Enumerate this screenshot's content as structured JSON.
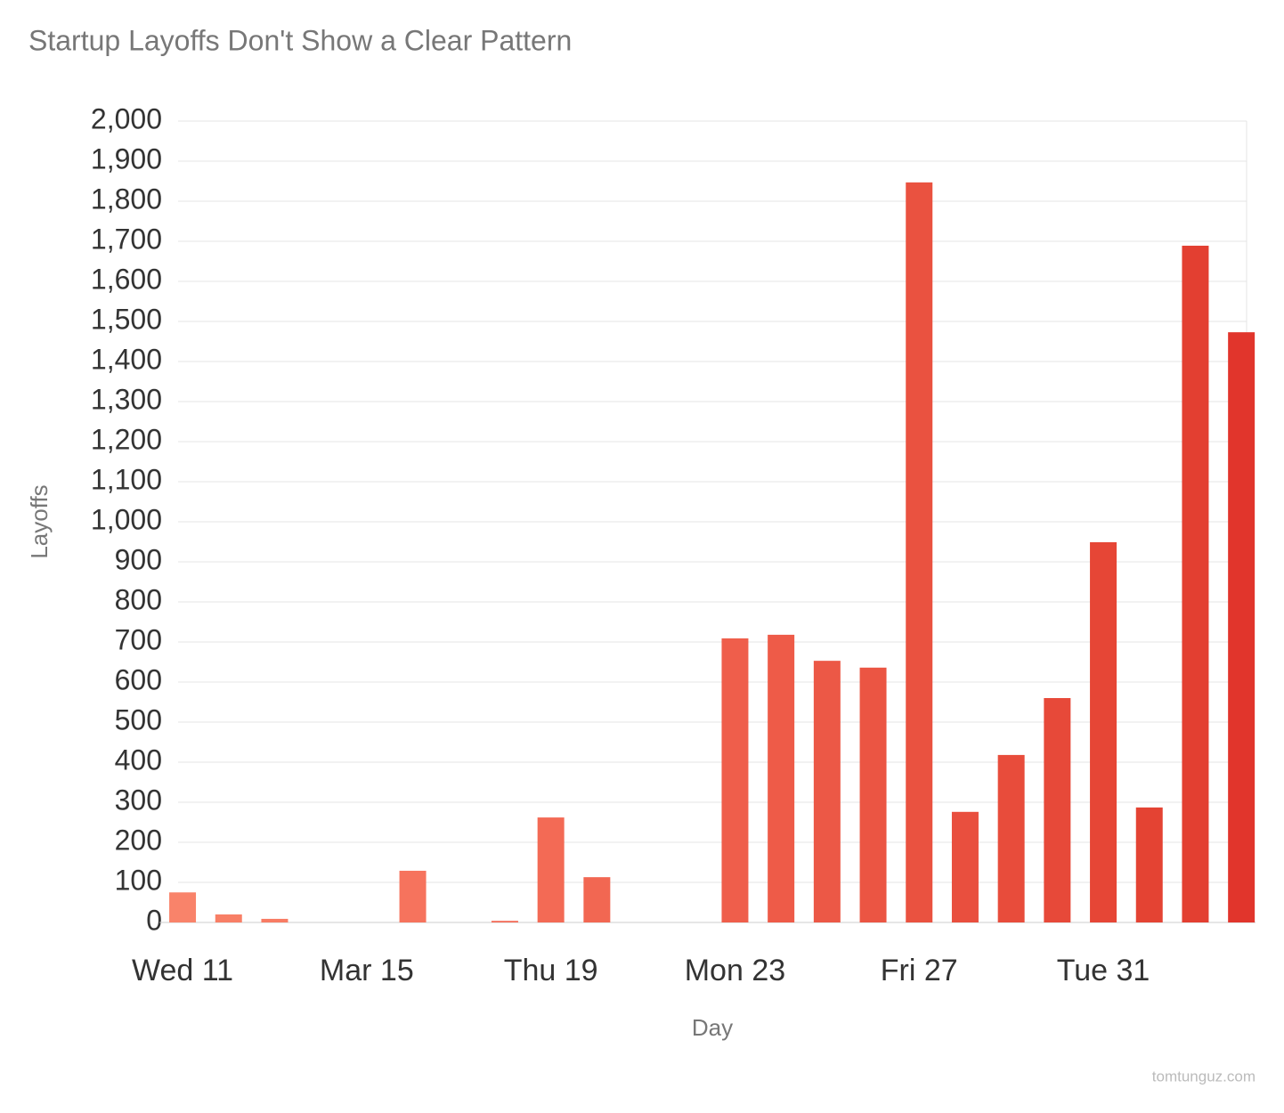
{
  "chart_data": {
    "type": "bar",
    "title": "Startup Layoffs Don't Show a Clear Pattern",
    "x_label": "Day",
    "y_label": "Layoffs",
    "source": "tomtunguz.com",
    "categories": [
      "Wed 11",
      null,
      null,
      null,
      "Mar 15",
      null,
      null,
      null,
      "Thu 19",
      null,
      null,
      null,
      "Mon 23",
      null,
      null,
      null,
      "Fri 27",
      null,
      null,
      null,
      "Tue 31",
      null,
      null,
      null
    ],
    "values": [
      75,
      20,
      9,
      0,
      0,
      129,
      0,
      4,
      262,
      113,
      0,
      0,
      709,
      718,
      653,
      636,
      1847,
      276,
      418,
      560,
      949,
      287,
      1689,
      1473
    ],
    "colors": [
      "#f9836a",
      "#f87f66",
      "#f87c64",
      "#f77962",
      "#f77660",
      "#f6735d",
      "#f5705a",
      "#f46c58",
      "#f36a55",
      "#f26752",
      "#f16450",
      "#f0614d",
      "#ef5e4b",
      "#ee5b48",
      "#ec5846",
      "#eb5543",
      "#ea5240",
      "#e94f3e",
      "#e84c3b",
      "#e74939",
      "#e64636",
      "#e44333",
      "#e33f31",
      "#e1352c"
    ],
    "ylim": [
      0,
      2000
    ],
    "yticks": [
      0,
      100,
      200,
      300,
      400,
      500,
      600,
      700,
      800,
      900,
      {
        "value": 1000,
        "label": "1,000"
      },
      {
        "value": 1100,
        "label": "1,100"
      },
      {
        "value": 1200,
        "label": "1,200"
      },
      {
        "value": 1300,
        "label": "1,300"
      },
      {
        "value": 1400,
        "label": "1,400"
      },
      {
        "value": 1500,
        "label": "1,500"
      },
      {
        "value": 1600,
        "label": "1,600"
      },
      {
        "value": 1700,
        "label": "1,700"
      },
      {
        "value": 1800,
        "label": "1,800"
      },
      {
        "value": 1900,
        "label": "1,900"
      },
      {
        "value": 2000,
        "label": "2,000"
      }
    ],
    "grid": true
  }
}
